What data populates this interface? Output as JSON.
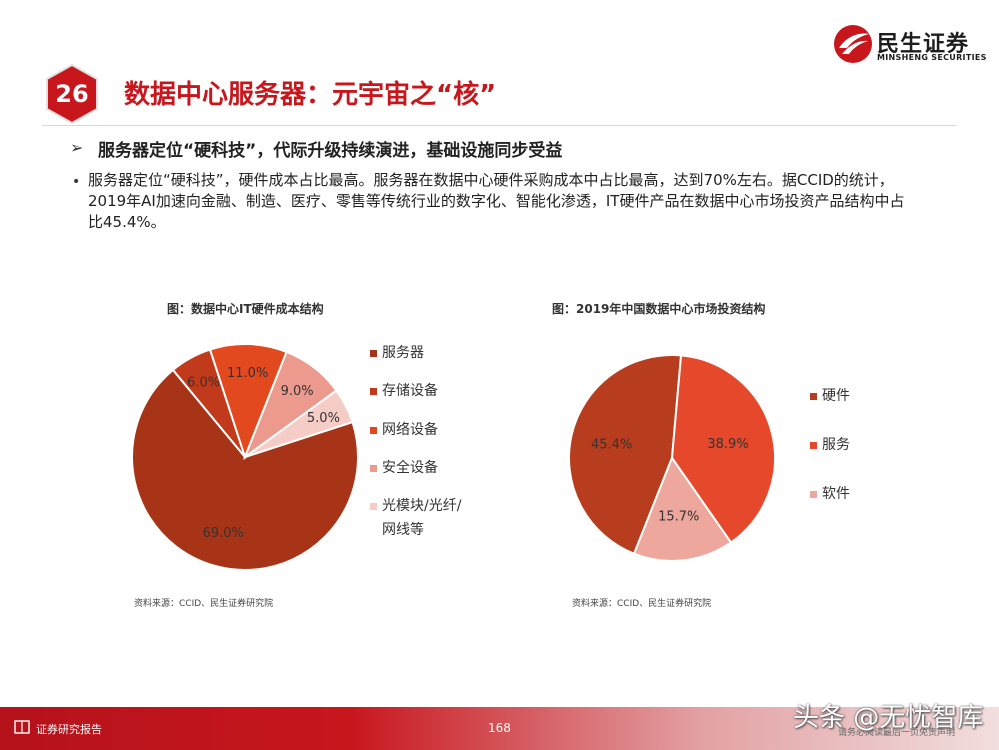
{
  "logo": {
    "name_cn": "民生证券",
    "name_en": "MINSHENG SECURITIES",
    "color": "#c8161d"
  },
  "page": {
    "number_badge": "26",
    "title": "数据中心服务器：元宇宙之“核”"
  },
  "subheading": "服务器定位“硬科技”，代际升级持续演进，基础设施同步受益",
  "bullet": "服务器定位“硬科技”，硬件成本占比最高。服务器在数据中心硬件采购成本中占比最高，达到70%左右。据CCID的统计，2019年AI加速向金融、制造、医疗、零售等传统行业的数字化、智能化渗透，IT硬件产品在数据中心市场投资产品结构中占比45.4%。",
  "chart_data": [
    {
      "type": "pie",
      "title": "图：数据中心IT硬件成本结构",
      "categories": [
        "服务器",
        "存储设备",
        "网络设备",
        "安全设备",
        "光模块/光纤/网线等"
      ],
      "legend_lines": [
        "服务器",
        "存储设备",
        "网络设备",
        "安全设备",
        "光模块/光纤/",
        "网线等"
      ],
      "values": [
        69.0,
        6.0,
        11.0,
        9.0,
        5.0
      ],
      "labels": [
        "69.0%",
        "6.0%",
        "11.0%",
        "9.0%",
        "5.0%"
      ],
      "colors": [
        "#a83418",
        "#c23a1c",
        "#e2491f",
        "#ec9a8e",
        "#f5cdc6"
      ],
      "legend_position": "right",
      "source": "资料来源：CCID、民生证券研究院"
    },
    {
      "type": "pie",
      "title": "图：2019年中国数据中心市场投资结构",
      "categories": [
        "硬件",
        "服务",
        "软件"
      ],
      "values": [
        45.4,
        38.9,
        15.7
      ],
      "labels": [
        "45.4%",
        "38.9%",
        "15.7%"
      ],
      "colors": [
        "#b83d1e",
        "#e5482a",
        "#eea79d"
      ],
      "legend_position": "right",
      "source": "资料来源：CCID、民生证券研究院"
    }
  ],
  "footer": {
    "left_text": "证券研究报告",
    "page": "168",
    "note": "请务必阅读最后一页免责声明",
    "watermark": "头条 @无忧智库"
  }
}
